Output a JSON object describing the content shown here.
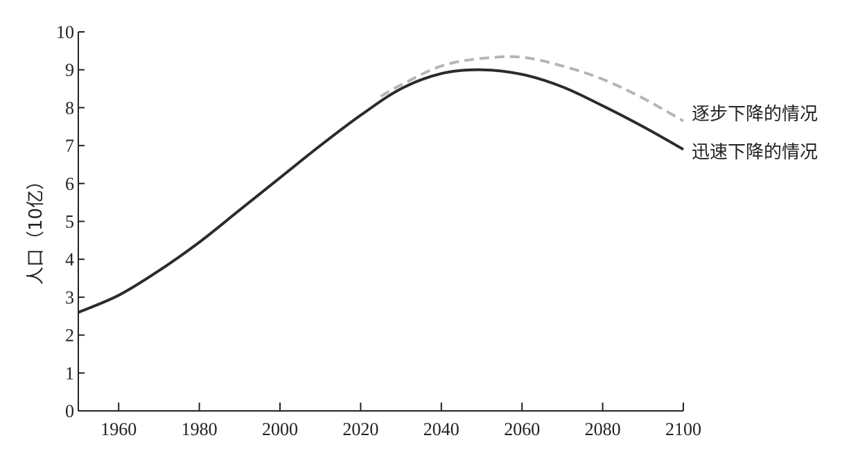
{
  "chart_data": {
    "type": "line",
    "title": "",
    "xlabel": "",
    "ylabel": "人口（10亿）",
    "xlim": [
      1950,
      2100
    ],
    "ylim": [
      0,
      10
    ],
    "x_ticks": [
      "1960",
      "1980",
      "2000",
      "2020",
      "2040",
      "2060",
      "2080",
      "2100"
    ],
    "y_ticks": [
      "0",
      "1",
      "2",
      "3",
      "4",
      "5",
      "6",
      "7",
      "8",
      "9",
      "10"
    ],
    "grid": false,
    "legend": "none",
    "series": [
      {
        "name": "迅速下降的情况",
        "style": "solid",
        "color": "#2b2b2b",
        "points": [
          [
            1950,
            2.6
          ],
          [
            1960,
            3.05
          ],
          [
            1970,
            3.7
          ],
          [
            1980,
            4.45
          ],
          [
            1990,
            5.3
          ],
          [
            2000,
            6.15
          ],
          [
            2010,
            7.0
          ],
          [
            2020,
            7.8
          ],
          [
            2030,
            8.5
          ],
          [
            2040,
            8.9
          ],
          [
            2050,
            9.0
          ],
          [
            2060,
            8.88
          ],
          [
            2070,
            8.55
          ],
          [
            2080,
            8.05
          ],
          [
            2090,
            7.5
          ],
          [
            2100,
            6.9
          ]
        ]
      },
      {
        "name": "逐步下降的情况",
        "style": "dashed",
        "color": "#b5b5b5",
        "points": [
          [
            2025,
            8.3
          ],
          [
            2030,
            8.6
          ],
          [
            2040,
            9.1
          ],
          [
            2050,
            9.3
          ],
          [
            2060,
            9.33
          ],
          [
            2070,
            9.1
          ],
          [
            2080,
            8.75
          ],
          [
            2090,
            8.25
          ],
          [
            2100,
            7.65
          ]
        ]
      }
    ]
  }
}
